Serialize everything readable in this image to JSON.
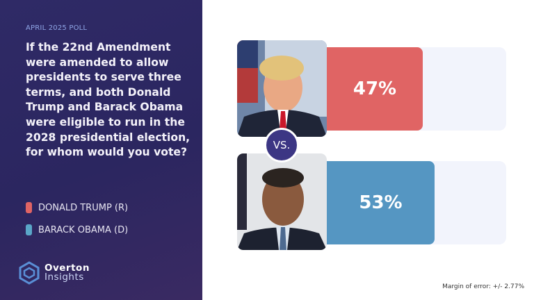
{
  "poll_label": "APRIL 2025 POLL",
  "question": "If the 22nd Amendment were amended to allow presidents to serve three terms, and both Donald Trump and Barack Obama were eligible to run in the 2028 presidential election, for whom would you vote?",
  "legend": [
    {
      "label": "DONALD TRUMP (R)",
      "color": "#e06464"
    },
    {
      "label": "BARACK OBAMA (D)",
      "color": "#5596c2"
    }
  ],
  "logo": {
    "line1": "Overton",
    "line2": "Insights"
  },
  "vs_label": "VS.",
  "margin_of_error": "Margin of error: +/- 2.77%",
  "chart_data": {
    "type": "bar",
    "orientation": "horizontal",
    "title": "If the 22nd Amendment were amended to allow presidents to serve three terms, and both Donald Trump and Barack Obama were eligible to run in the 2028 presidential election, for whom would you vote?",
    "categories": [
      "DONALD TRUMP (R)",
      "BARACK OBAMA (D)"
    ],
    "values": [
      47,
      53
    ],
    "labels": [
      "47%",
      "53%"
    ],
    "colors": [
      "#e06464",
      "#5596c2"
    ],
    "unit": "%"
  }
}
